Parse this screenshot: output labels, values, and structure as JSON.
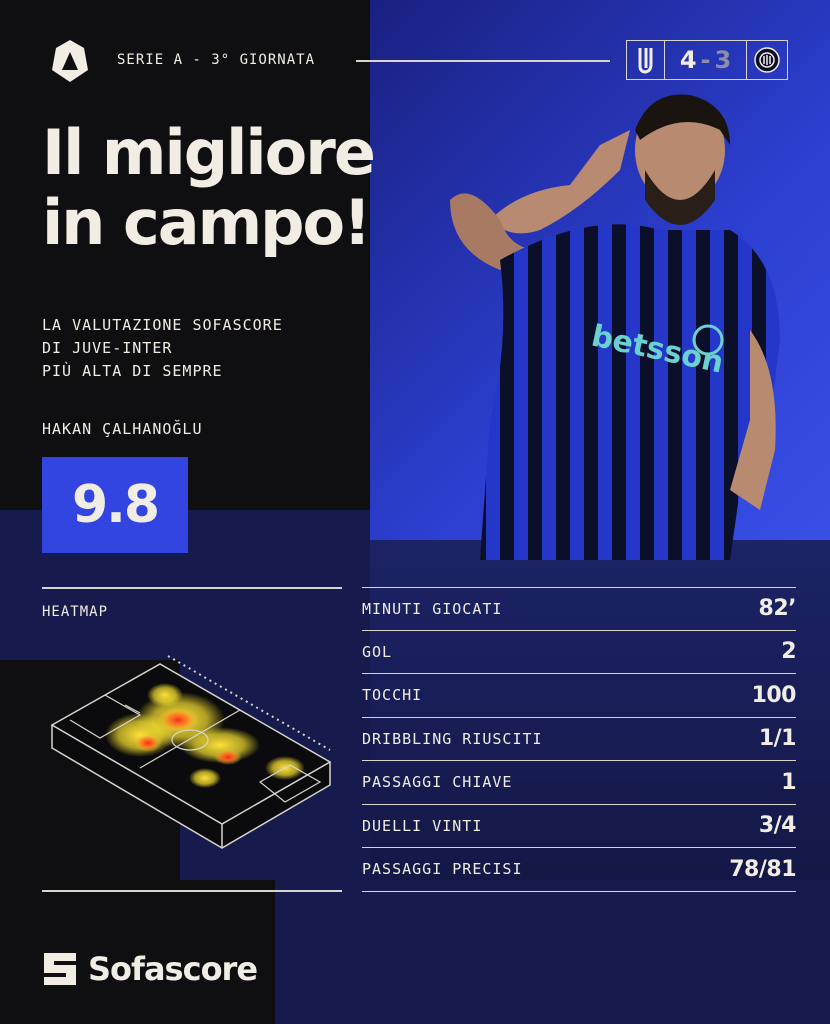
{
  "header": {
    "round": "SERIE A - 3° GIORNATA",
    "score": {
      "home": "4",
      "separator": "-",
      "away": "3"
    }
  },
  "title_lines": [
    "Il migliore",
    "in campo!"
  ],
  "subtitle_lines": [
    "LA VALUTAZIONE SOFASCORE",
    "DI JUVE-INTER",
    "PIÙ ALTA DI SEMPRE"
  ],
  "player": {
    "name": "HAKAN ÇALHANOĞLU",
    "rating": "9.8",
    "shirt_sponsor": "betsson"
  },
  "heatmap": {
    "label": "HEATMAP"
  },
  "stats": [
    {
      "label": "MINUTI GIOCATI",
      "value": "82’"
    },
    {
      "label": "GOL",
      "value": "2"
    },
    {
      "label": "TOCCHI",
      "value": "100"
    },
    {
      "label": "DRIBBLING RIUSCITI",
      "value": "1/1"
    },
    {
      "label": "PASSAGGI CHIAVE",
      "value": "1"
    },
    {
      "label": "DUELLI VINTI",
      "value": "3/4"
    },
    {
      "label": "PASSAGGI PRECISI",
      "value": "78/81"
    }
  ],
  "brand": "Sofascore",
  "colors": {
    "accent_blue": "#3345e0",
    "dark": "#0f0f12",
    "navy": "#161a4c",
    "text": "#f1ede4"
  }
}
